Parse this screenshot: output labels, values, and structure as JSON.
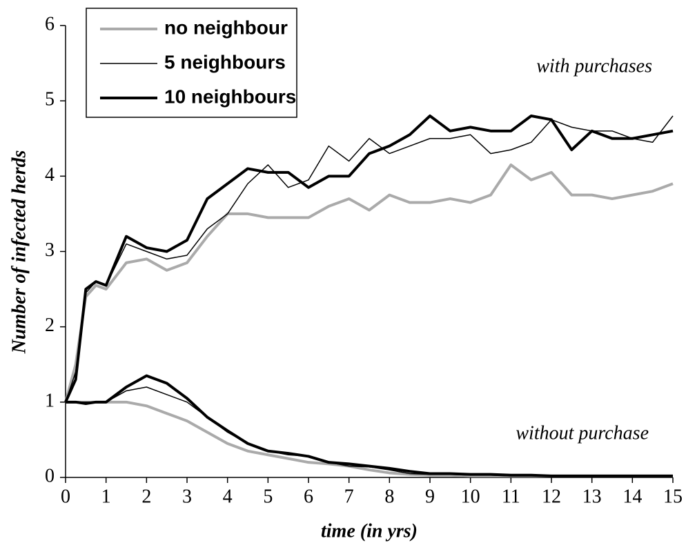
{
  "chart_data": {
    "type": "line",
    "x_label": "time (in yrs)",
    "y_label": "Number of infected herds",
    "annotations": [
      "with purchases",
      "without purchase"
    ],
    "x": [
      0,
      0.25,
      0.5,
      0.75,
      1,
      1.5,
      2,
      2.5,
      3,
      3.5,
      4,
      4.5,
      5,
      5.5,
      6,
      6.5,
      7,
      7.5,
      8,
      8.5,
      9,
      9.5,
      10,
      10.5,
      11,
      11.5,
      12,
      12.5,
      13,
      13.5,
      14,
      14.5,
      15
    ],
    "series": [
      {
        "name": "no neighbour",
        "color": "#aaaaaa",
        "width": 4,
        "with_purchases": [
          1,
          1.5,
          2.4,
          2.55,
          2.5,
          2.85,
          2.9,
          2.75,
          2.85,
          3.2,
          3.5,
          3.5,
          3.45,
          3.45,
          3.45,
          3.6,
          3.7,
          3.55,
          3.75,
          3.65,
          3.65,
          3.7,
          3.65,
          3.75,
          4.15,
          3.95,
          4.05,
          3.75,
          3.75,
          3.7,
          3.75,
          3.8,
          3.9
        ],
        "without_purchase": [
          1,
          1,
          1,
          1,
          1,
          1,
          0.95,
          0.85,
          0.75,
          0.6,
          0.45,
          0.35,
          0.3,
          0.25,
          0.2,
          0.18,
          0.15,
          0.1,
          0.06,
          0.04,
          0.03,
          0.03,
          0.02,
          0.02,
          0.02,
          0.02,
          0.02,
          0.02,
          0.02,
          0.02,
          0.02,
          0.02,
          0.02
        ]
      },
      {
        "name": "5 neighbours",
        "color": "#000000",
        "width": 1.5,
        "with_purchases": [
          1,
          1.4,
          2.45,
          2.6,
          2.55,
          3.1,
          3.0,
          2.9,
          2.95,
          3.3,
          3.5,
          3.9,
          4.15,
          3.85,
          3.95,
          4.4,
          4.2,
          4.5,
          4.3,
          4.4,
          4.5,
          4.5,
          4.55,
          4.3,
          4.35,
          4.45,
          4.75,
          4.65,
          4.6,
          4.6,
          4.5,
          4.45,
          4.8
        ],
        "without_purchase": [
          1,
          1,
          1,
          1,
          1,
          1.15,
          1.2,
          1.1,
          1.0,
          0.8,
          0.6,
          0.45,
          0.35,
          0.3,
          0.28,
          0.2,
          0.15,
          0.14,
          0.1,
          0.05,
          0.04,
          0.04,
          0.03,
          0.03,
          0.02,
          0.02,
          0.02,
          0.02,
          0.02,
          0.02,
          0.02,
          0.02,
          0.02
        ]
      },
      {
        "name": "10 neighbours",
        "color": "#000000",
        "width": 4,
        "with_purchases": [
          1,
          1.3,
          2.5,
          2.6,
          2.55,
          3.2,
          3.05,
          3.0,
          3.15,
          3.7,
          3.9,
          4.1,
          4.05,
          4.05,
          3.85,
          4.0,
          4.0,
          4.3,
          4.4,
          4.55,
          4.8,
          4.6,
          4.65,
          4.6,
          4.6,
          4.8,
          4.75,
          4.35,
          4.6,
          4.5,
          4.5,
          4.55,
          4.6
        ],
        "without_purchase": [
          1,
          1,
          0.98,
          1,
          1,
          1.2,
          1.35,
          1.25,
          1.05,
          0.8,
          0.62,
          0.45,
          0.35,
          0.32,
          0.28,
          0.2,
          0.18,
          0.15,
          0.12,
          0.08,
          0.05,
          0.05,
          0.04,
          0.04,
          0.03,
          0.03,
          0.02,
          0.02,
          0.02,
          0.02,
          0.02,
          0.02,
          0.02
        ]
      }
    ],
    "xlim": [
      0,
      15
    ],
    "xticks": [
      0,
      1,
      2,
      3,
      4,
      5,
      6,
      7,
      8,
      9,
      10,
      11,
      12,
      13,
      14,
      15
    ],
    "ylim": [
      0,
      6
    ],
    "yticks": [
      0,
      1,
      2,
      3,
      4,
      5,
      6
    ],
    "grid": false,
    "legend": "top-left"
  }
}
